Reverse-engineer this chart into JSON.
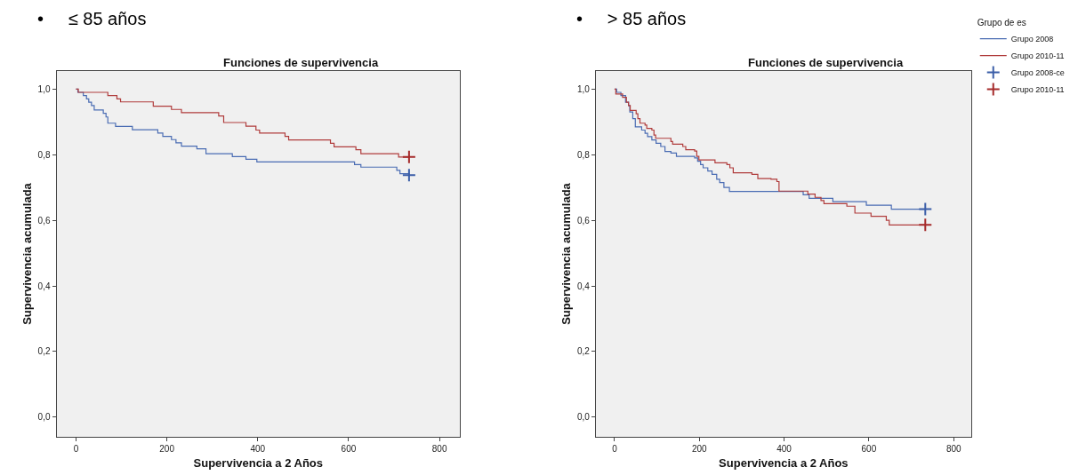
{
  "chart_data": [
    {
      "type": "step",
      "subtitle": "•     ≤ 85 años",
      "title": "Funciones de supervivencia",
      "xlabel": "Supervivencia a 2 Años",
      "ylabel": "Supervivencia acumulada",
      "xlim": [
        -43,
        845
      ],
      "xticks": [
        0,
        200,
        400,
        600,
        800
      ],
      "ylim": [
        -0.06,
        1.055
      ],
      "yticks": [
        {
          "value": 0,
          "label": "0,0"
        },
        {
          "value": 0.2,
          "label": "0,2"
        },
        {
          "value": 0.4,
          "label": "0,4"
        },
        {
          "value": 0.6,
          "label": "0,6"
        },
        {
          "value": 0.8,
          "label": "0,8"
        },
        {
          "value": 1.0,
          "label": "1,0"
        }
      ],
      "grid": false,
      "legend": false,
      "marker": "none",
      "line_style": "solid",
      "series": [
        {
          "color": "#4a6cb3",
          "x": [
            0,
            4,
            16,
            23,
            28,
            34,
            40,
            60,
            66,
            70,
            87,
            124,
            180,
            191,
            210,
            220,
            232,
            266,
            286,
            344,
            374,
            398,
            613,
            627,
            706,
            713,
            733
          ],
          "values": [
            1.0,
            0.99,
            0.98,
            0.97,
            0.96,
            0.95,
            0.936,
            0.926,
            0.915,
            0.896,
            0.886,
            0.876,
            0.866,
            0.856,
            0.846,
            0.836,
            0.826,
            0.818,
            0.803,
            0.794,
            0.786,
            0.778,
            0.77,
            0.762,
            0.752,
            0.742,
            0.738
          ]
        },
        {
          "color": "#b03c3c",
          "x": [
            0,
            5,
            70,
            90,
            98,
            170,
            210,
            232,
            314,
            325,
            374,
            396,
            404,
            460,
            468,
            560,
            568,
            616,
            627,
            710,
            733
          ],
          "values": [
            1.0,
            0.99,
            0.98,
            0.97,
            0.961,
            0.948,
            0.938,
            0.928,
            0.918,
            0.898,
            0.887,
            0.875,
            0.866,
            0.856,
            0.845,
            0.835,
            0.824,
            0.815,
            0.803,
            0.793,
            0.793
          ]
        },
        {
          "type": "scatter",
          "marker": "cross",
          "color": "#3b5ea8",
          "x": [
            733
          ],
          "values": [
            0.738
          ]
        },
        {
          "type": "scatter",
          "marker": "cross",
          "color": "#a52a2a",
          "x": [
            733
          ],
          "values": [
            0.793
          ]
        }
      ]
    },
    {
      "type": "step",
      "subtitle": "•     > 85 años",
      "title": "Funciones de supervivencia",
      "xlabel": "Supervivencia a 2 Años",
      "ylabel": "Supervivencia acumulada",
      "legend_title": "Grupo de es",
      "xlim": [
        -44,
        841
      ],
      "xticks": [
        0,
        200,
        400,
        600,
        800
      ],
      "ylim": [
        -0.06,
        1.055
      ],
      "yticks": [
        {
          "value": 0,
          "label": "0,0"
        },
        {
          "value": 0.2,
          "label": "0,2"
        },
        {
          "value": 0.4,
          "label": "0,4"
        },
        {
          "value": 0.6,
          "label": "0,6"
        },
        {
          "value": 0.8,
          "label": "0,8"
        },
        {
          "value": 1.0,
          "label": "1,0"
        }
      ],
      "grid": false,
      "legend": "right",
      "marker": "none",
      "line_style": "solid",
      "series": [
        {
          "name": "Grupo 2008",
          "color": "#4a6cb3",
          "x": [
            0,
            5,
            15,
            26,
            33,
            36,
            43,
            49,
            64,
            72,
            78,
            88,
            98,
            109,
            119,
            133,
            146,
            189,
            196,
            203,
            209,
            220,
            230,
            241,
            248,
            258,
            271,
            445,
            459,
            515,
            594,
            653,
            733
          ],
          "values": [
            1.0,
            0.99,
            0.98,
            0.96,
            0.95,
            0.93,
            0.91,
            0.885,
            0.875,
            0.865,
            0.855,
            0.845,
            0.835,
            0.825,
            0.81,
            0.805,
            0.795,
            0.79,
            0.78,
            0.77,
            0.76,
            0.75,
            0.74,
            0.725,
            0.715,
            0.7,
            0.688,
            0.678,
            0.667,
            0.657,
            0.646,
            0.634,
            0.634
          ]
        },
        {
          "name": "Grupo 2010-11",
          "color": "#b03c3c",
          "x": [
            0,
            3,
            19,
            28,
            33,
            37,
            51,
            55,
            60,
            72,
            76,
            88,
            93,
            97,
            133,
            137,
            161,
            168,
            189,
            194,
            199,
            237,
            265,
            272,
            280,
            324,
            338,
            369,
            383,
            388,
            456,
            473,
            487,
            494,
            548,
            567,
            605,
            641,
            648,
            733
          ],
          "values": [
            1.0,
            0.985,
            0.975,
            0.96,
            0.95,
            0.935,
            0.925,
            0.91,
            0.896,
            0.89,
            0.88,
            0.875,
            0.86,
            0.85,
            0.84,
            0.832,
            0.825,
            0.815,
            0.811,
            0.795,
            0.784,
            0.775,
            0.77,
            0.76,
            0.745,
            0.74,
            0.727,
            0.725,
            0.718,
            0.689,
            0.68,
            0.67,
            0.66,
            0.651,
            0.643,
            0.622,
            0.612,
            0.6,
            0.586,
            0.586
          ]
        },
        {
          "type": "scatter",
          "name": "Grupo 2008-ce",
          "marker": "cross",
          "color": "#3b5ea8",
          "x": [
            733
          ],
          "values": [
            0.634
          ]
        },
        {
          "type": "scatter",
          "name": "Grupo 2010-11",
          "marker": "cross",
          "color": "#a52a2a",
          "x": [
            733
          ],
          "values": [
            0.586
          ]
        }
      ]
    }
  ]
}
